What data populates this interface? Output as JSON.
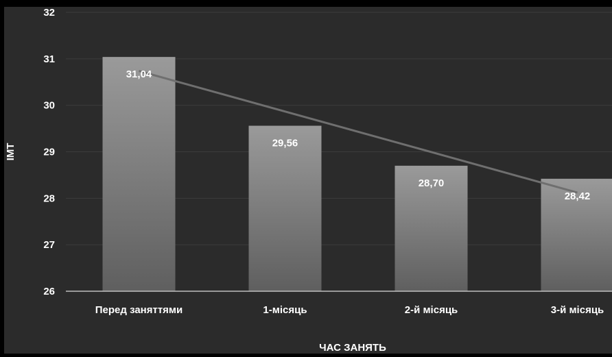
{
  "chart_data": {
    "type": "bar",
    "categories": [
      "Перед заняттями",
      "1-місяць",
      "2-й місяць",
      "3-й місяць"
    ],
    "values": [
      31.04,
      29.56,
      28.7,
      28.42
    ],
    "data_labels": [
      "31,04",
      "29,56",
      "28,70",
      "28,42"
    ],
    "trendline": "linear",
    "xlabel": "ЧАС ЗАНЯТЬ",
    "ylabel": "ІМТ",
    "ylim": [
      26,
      32
    ],
    "yticks": [
      "26",
      "27",
      "28",
      "29",
      "30",
      "31",
      "32"
    ],
    "grid": true,
    "legend": "none",
    "colors": {
      "background": "#2b2b2b",
      "bar_top": "#9a9a9a",
      "bar_bottom": "#5f5f5f",
      "trendline": "#6f6f6f",
      "gridline": "#3d3d3d",
      "axis": "#bfbfbf",
      "text": "#ffffff"
    }
  }
}
